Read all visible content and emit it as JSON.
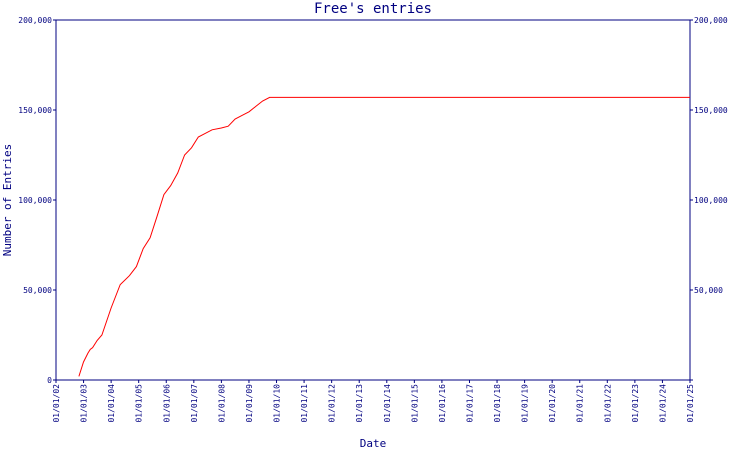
{
  "chart_data": {
    "type": "line",
    "title": "Free's entries",
    "xlabel": "Date",
    "ylabel": "Number of Entries",
    "ylim": [
      0,
      200000
    ],
    "x_tick_labels": [
      "01/01/02",
      "01/01/03",
      "01/01/04",
      "01/01/05",
      "01/01/06",
      "01/01/07",
      "01/01/08",
      "01/01/09",
      "01/01/10",
      "01/01/11",
      "01/01/12",
      "01/01/13",
      "01/01/14",
      "01/01/15",
      "01/01/16",
      "01/01/17",
      "01/01/18",
      "01/01/19",
      "01/01/20",
      "01/01/21",
      "01/01/22",
      "01/01/23",
      "01/01/24",
      "01/01/25"
    ],
    "y_tick_values": [
      0,
      50000,
      100000,
      150000,
      200000
    ],
    "y_tick_labels_left": [
      "0",
      "50,000",
      "100,000",
      "150,000",
      "200,000"
    ],
    "y_tick_labels_right": [
      "",
      "50,000",
      "100,000",
      "150,000",
      "200,000"
    ],
    "grid": false,
    "series": [
      {
        "color": "#ff0000",
        "x": [
          "2002-11-01",
          "2003-01-01",
          "2003-03-01",
          "2003-04-01",
          "2003-05-01",
          "2003-07-01",
          "2003-09-01",
          "2004-01-01",
          "2004-05-01",
          "2004-09-01",
          "2004-12-01",
          "2005-03-01",
          "2005-06-01",
          "2005-09-01",
          "2005-12-01",
          "2006-03-01",
          "2006-06-01",
          "2006-09-01",
          "2006-12-01",
          "2007-03-01",
          "2007-06-01",
          "2007-09-01",
          "2008-01-01",
          "2008-04-01",
          "2008-07-01",
          "2008-10-01",
          "2009-01-01",
          "2009-04-01",
          "2009-07-01",
          "2009-10-01",
          "2010-01-01",
          "2025-01-01"
        ],
        "y": [
          2000,
          10000,
          15000,
          17000,
          18000,
          22000,
          25000,
          40000,
          53000,
          58000,
          63000,
          73000,
          79000,
          91000,
          103000,
          108000,
          115000,
          125000,
          129000,
          135000,
          137000,
          139000,
          140000,
          141000,
          145000,
          147000,
          149000,
          152000,
          155000,
          157000,
          157000,
          157000
        ]
      }
    ]
  }
}
